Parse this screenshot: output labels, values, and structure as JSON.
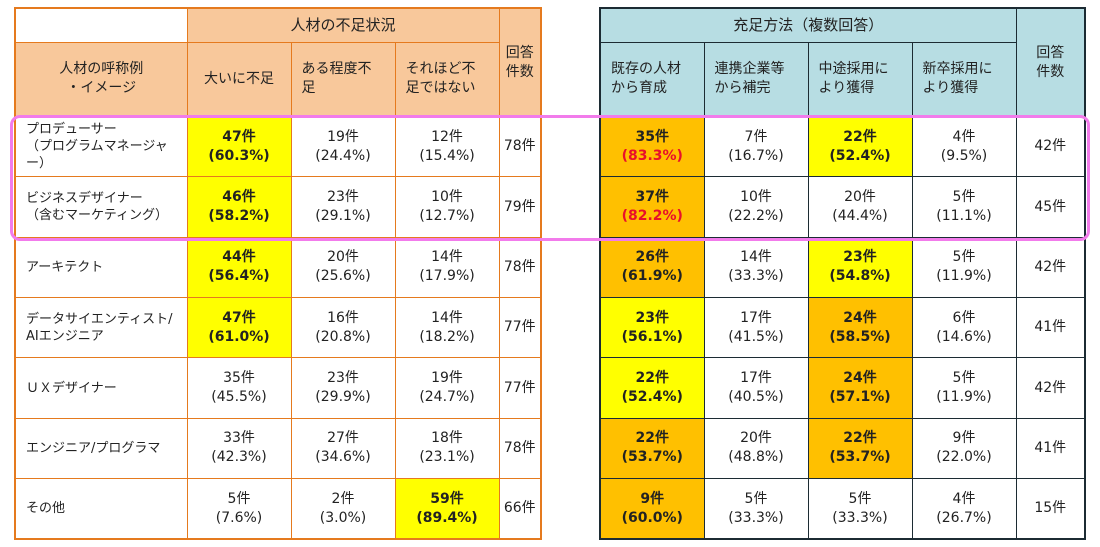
{
  "left": {
    "group_title": "人材の不足状況",
    "role_header": [
      "人材の呼称例",
      "・イメージ"
    ],
    "columns": [
      "大いに不足",
      "ある程度不足",
      "それほど不足ではない"
    ],
    "col_lines": [
      [
        "大いに不足"
      ],
      [
        "ある程度不",
        "足"
      ],
      [
        "それほど不",
        "足ではない"
      ]
    ],
    "count_header": [
      "回答",
      "件数"
    ],
    "rows": [
      {
        "role": [
          "プロデューサー",
          "（プログラムマネージャー）"
        ],
        "vals": [
          [
            "47件",
            "(60.3%)"
          ],
          [
            "19件",
            "(24.4%)"
          ],
          [
            "12件",
            "(15.4%)"
          ]
        ],
        "count": "78件"
      },
      {
        "role": [
          "ビジネスデザイナー",
          "（含むマーケティング）"
        ],
        "vals": [
          [
            "46件",
            "(58.2%)"
          ],
          [
            "23件",
            "(29.1%)"
          ],
          [
            "10件",
            "(12.7%)"
          ]
        ],
        "count": "79件"
      },
      {
        "role": [
          "アーキテクト"
        ],
        "vals": [
          [
            "44件",
            "(56.4%)"
          ],
          [
            "20件",
            "(25.6%)"
          ],
          [
            "14件",
            "(17.9%)"
          ]
        ],
        "count": "78件"
      },
      {
        "role": [
          "データサイエンティスト/",
          "AIエンジニア"
        ],
        "vals": [
          [
            "47件",
            "(61.0%)"
          ],
          [
            "16件",
            "(20.8%)"
          ],
          [
            "14件",
            "(18.2%)"
          ]
        ],
        "count": "77件"
      },
      {
        "role": [
          "ＵＸデザイナー"
        ],
        "vals": [
          [
            "35件",
            "(45.5%)"
          ],
          [
            "23件",
            "(29.9%)"
          ],
          [
            "19件",
            "(24.7%)"
          ]
        ],
        "count": "77件"
      },
      {
        "role": [
          "エンジニア/プログラマ"
        ],
        "vals": [
          [
            "33件",
            "(42.3%)"
          ],
          [
            "27件",
            "(34.6%)"
          ],
          [
            "18件",
            "(23.1%)"
          ]
        ],
        "count": "78件"
      },
      {
        "role": [
          "その他"
        ],
        "vals": [
          [
            "5件",
            "(7.6%)"
          ],
          [
            "2件",
            "(3.0%)"
          ],
          [
            "59件",
            "(89.4%)"
          ]
        ],
        "count": "66件"
      }
    ]
  },
  "right": {
    "group_title": "充足方法（複数回答）",
    "col_lines": [
      [
        "既存の人材",
        "から育成"
      ],
      [
        "連携企業等",
        "から補完"
      ],
      [
        "中途採用に",
        "より獲得"
      ],
      [
        "新卒採用に",
        "より獲得"
      ]
    ],
    "count_header": [
      "回答",
      "件数"
    ],
    "rows": [
      {
        "vals": [
          [
            "35件",
            "(83.3%)"
          ],
          [
            "7件",
            "(16.7%)"
          ],
          [
            "22件",
            "(52.4%)"
          ],
          [
            "4件",
            "(9.5%)"
          ]
        ],
        "count": "42件"
      },
      {
        "vals": [
          [
            "37件",
            "(82.2%)"
          ],
          [
            "10件",
            "(22.2%)"
          ],
          [
            "20件",
            "(44.4%)"
          ],
          [
            "5件",
            "(11.1%)"
          ]
        ],
        "count": "45件"
      },
      {
        "vals": [
          [
            "26件",
            "(61.9%)"
          ],
          [
            "14件",
            "(33.3%)"
          ],
          [
            "23件",
            "(54.8%)"
          ],
          [
            "5件",
            "(11.9%)"
          ]
        ],
        "count": "42件"
      },
      {
        "vals": [
          [
            "23件",
            "(56.1%)"
          ],
          [
            "17件",
            "(41.5%)"
          ],
          [
            "24件",
            "(58.5%)"
          ],
          [
            "6件",
            "(14.6%)"
          ]
        ],
        "count": "41件"
      },
      {
        "vals": [
          [
            "22件",
            "(52.4%)"
          ],
          [
            "17件",
            "(40.5%)"
          ],
          [
            "24件",
            "(57.1%)"
          ],
          [
            "5件",
            "(11.9%)"
          ]
        ],
        "count": "42件"
      },
      {
        "vals": [
          [
            "22件",
            "(53.7%)"
          ],
          [
            "20件",
            "(48.8%)"
          ],
          [
            "22件",
            "(53.7%)"
          ],
          [
            "9件",
            "(22.0%)"
          ]
        ],
        "count": "41件"
      },
      {
        "vals": [
          [
            "9件",
            "(60.0%)"
          ],
          [
            "5件",
            "(33.3%)"
          ],
          [
            "5件",
            "(33.3%)"
          ],
          [
            "4件",
            "(26.7%)"
          ]
        ],
        "count": "15件"
      }
    ]
  },
  "highlight_colors": {
    "yellow": "#FFFF00",
    "orange": "#FFC000",
    "red_text": "#E8102A",
    "pink_box": "#F27BEB"
  }
}
